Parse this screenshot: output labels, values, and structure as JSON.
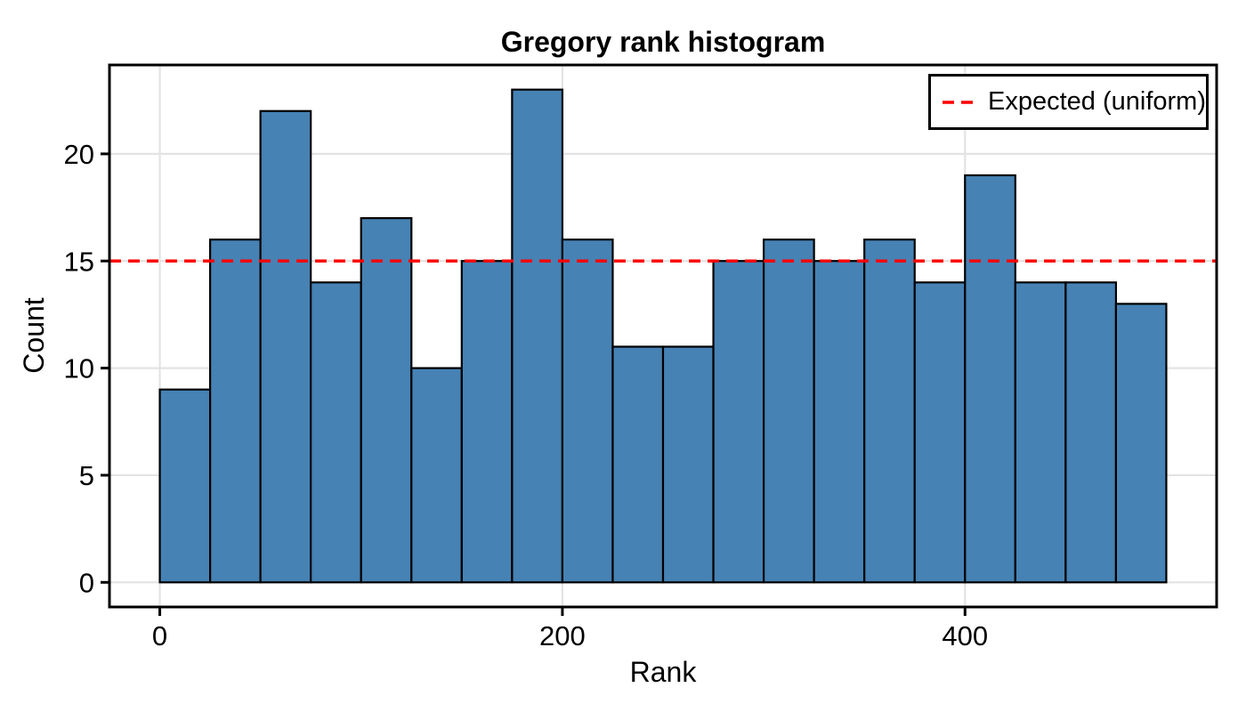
{
  "chart_data": {
    "type": "bar",
    "title": "Gregory rank histogram",
    "xlabel": "Rank",
    "ylabel": "Count",
    "bins": {
      "start": 0,
      "width": 25,
      "count": 20
    },
    "values": [
      9,
      16,
      22,
      14,
      17,
      10,
      15,
      23,
      16,
      11,
      11,
      15,
      16,
      15,
      16,
      14,
      19,
      14,
      14,
      13
    ],
    "expected_line": {
      "value": 15,
      "label": "Expected (uniform)",
      "color": "#ff0000",
      "style": "dashed"
    },
    "xticks": [
      0,
      200,
      400
    ],
    "yticks": [
      0,
      5,
      10,
      15,
      20
    ],
    "xlim": [
      -25,
      525
    ],
    "ylim": [
      -1.15,
      24.15
    ],
    "grid": true,
    "legend_position": "upper right",
    "colors": {
      "bar_fill": "#4682b4",
      "bar_edge": "#000000",
      "grid": "#e3e3e3",
      "axis": "#000000",
      "background": "#ffffff"
    }
  }
}
